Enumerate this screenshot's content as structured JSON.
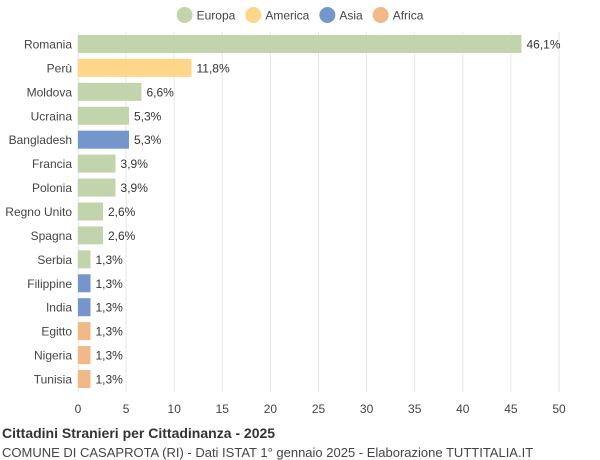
{
  "chart_data": {
    "type": "bar",
    "orientation": "horizontal",
    "categories": [
      "Romania",
      "Perù",
      "Moldova",
      "Ucraina",
      "Bangladesh",
      "Francia",
      "Polonia",
      "Regno Unito",
      "Spagna",
      "Serbia",
      "Filippine",
      "India",
      "Egitto",
      "Nigeria",
      "Tunisia"
    ],
    "values": [
      46.1,
      11.8,
      6.6,
      5.3,
      5.3,
      3.9,
      3.9,
      2.6,
      2.6,
      1.3,
      1.3,
      1.3,
      1.3,
      1.3,
      1.3
    ],
    "value_labels": [
      "46,1%",
      "11,8%",
      "6,6%",
      "5,3%",
      "5,3%",
      "3,9%",
      "3,9%",
      "2,6%",
      "2,6%",
      "1,3%",
      "1,3%",
      "1,3%",
      "1,3%",
      "1,3%",
      "1,3%"
    ],
    "groups": [
      "Europa",
      "America",
      "Europa",
      "Europa",
      "Asia",
      "Europa",
      "Europa",
      "Europa",
      "Europa",
      "Europa",
      "Asia",
      "Asia",
      "Africa",
      "Africa",
      "Africa"
    ],
    "legend": [
      {
        "name": "Europa",
        "color": "#c2d4ac"
      },
      {
        "name": "America",
        "color": "#fdd68a"
      },
      {
        "name": "Asia",
        "color": "#7496cc"
      },
      {
        "name": "Africa",
        "color": "#f0b987"
      }
    ],
    "xlim": [
      0,
      50
    ],
    "xticks": [
      0,
      5,
      10,
      15,
      20,
      25,
      30,
      35,
      40,
      45,
      50
    ],
    "grid": true,
    "legend_position": "top"
  },
  "footer": {
    "title": "Cittadini Stranieri per Cittadinanza - 2025",
    "subtitle": "COMUNE DI CASAPROTA (RI) - Dati ISTAT 1° gennaio 2025 - Elaborazione TUTTITALIA.IT"
  }
}
